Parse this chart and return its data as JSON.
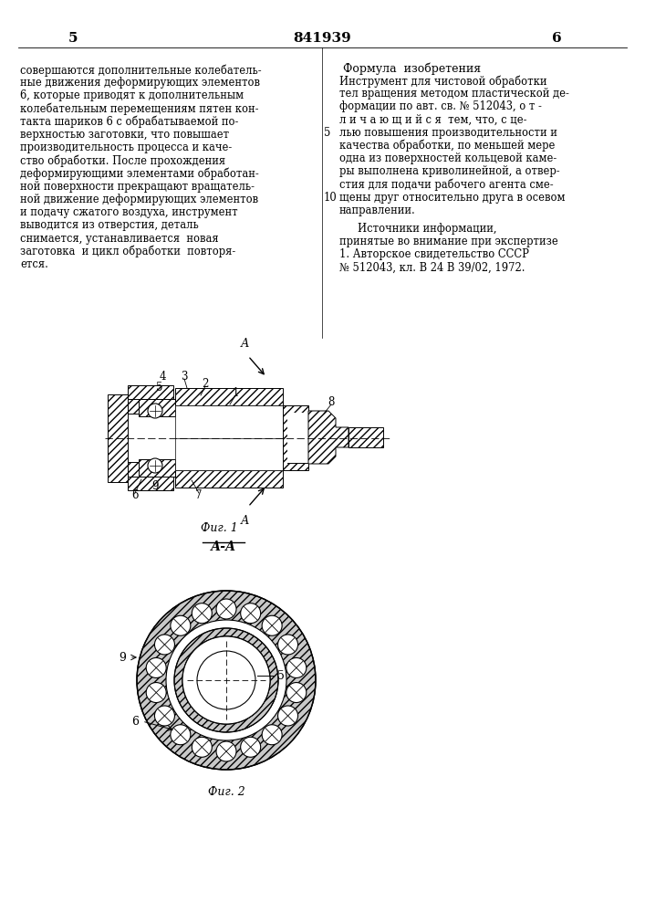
{
  "bg_color": "#ffffff",
  "page_number_left": "5",
  "page_number_center": "841939",
  "page_number_right": "6",
  "left_text": [
    "совершаются дополнительные колебатель-",
    "ные движения деформирующих элементов",
    "6, которые приводят к дополнительным",
    "колебательным перемещениям пятен кон-",
    "такта шариков 6 с обрабатываемой по-",
    "верхностью заготовки, что повышает",
    "производительность процесса и каче-",
    "ство обработки. После прохождения",
    "деформирующими элементами обработан-",
    "ной поверхности прекращают вращатель-",
    "ной движение деформирующих элементов",
    "и подачу сжатого воздуха, инструмент",
    "выводится из отверстия, деталь",
    "снимается, устанавливается  новая",
    "заготовка  и цикл обработки  повторя-",
    "ется."
  ],
  "right_title": "Формула  изобретения",
  "right_text": [
    "Инструмент для чистовой обработки",
    "тел вращения методом пластической де-",
    "формации по авт. св. № 512043, о т -",
    "л и ч а ю щ и й с я  тем, что, с це-",
    "лью повышения производительности и",
    "качества обработки, по меньшей мере",
    "одна из поверхностей кольцевой каме-",
    "ры выполнена криволинейной, а отвер-",
    "стия для подачи рабочего агента сме-",
    "щены друг относительно друга в осевом",
    "направлении."
  ],
  "ref_title": "Источники информации,",
  "ref_text": [
    "принятые во внимание при экспертизе",
    "1. Авторское свидетельство СССР",
    "№ 512043, кл. В 24 В 39/02, 1972."
  ],
  "fig1_caption": "Фиг. 1",
  "fig2_caption": "Фиг. 2",
  "section_label": "А-А"
}
